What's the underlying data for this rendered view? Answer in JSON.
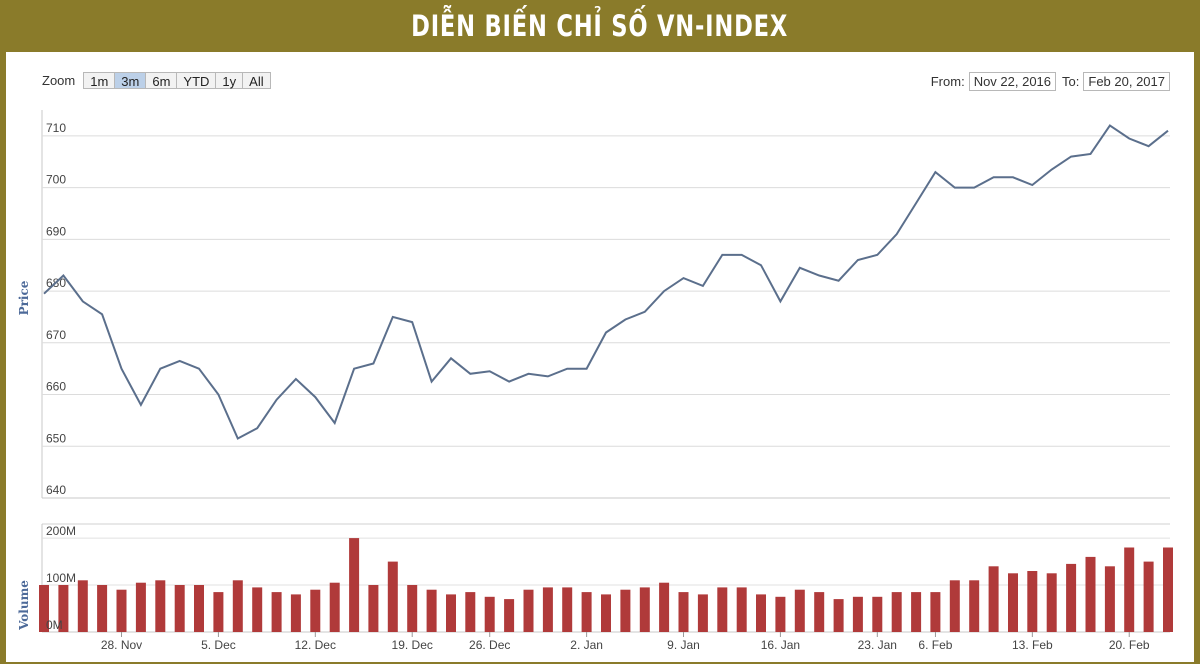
{
  "banner": {
    "title": "DIỄN BIẾN CHỈ SỐ VN-INDEX"
  },
  "zoom": {
    "label": "Zoom",
    "buttons": [
      {
        "label": "1m",
        "active": false
      },
      {
        "label": "3m",
        "active": true
      },
      {
        "label": "6m",
        "active": false
      },
      {
        "label": "YTD",
        "active": false
      },
      {
        "label": "1y",
        "active": false
      },
      {
        "label": "All",
        "active": false
      }
    ]
  },
  "range": {
    "from_label": "From:",
    "from_value": "Nov 22, 2016",
    "to_label": "To:",
    "to_value": "Feb 20, 2017"
  },
  "colors": {
    "line": "#5b6f8c",
    "bar": "#b03a3a",
    "banner": "#8a7b2a",
    "axis_title": "#4d6a99"
  },
  "chart_data": [
    {
      "type": "line",
      "ylabel": "Price",
      "ylim": [
        640,
        715
      ],
      "yticks": [
        640,
        650,
        660,
        670,
        680,
        690,
        700,
        710
      ],
      "grid": true,
      "values": [
        679.5,
        683,
        678,
        675.5,
        665,
        658,
        665,
        666.5,
        665,
        660,
        651.5,
        653.5,
        659,
        663,
        659.5,
        654.5,
        665,
        666,
        675,
        674,
        662.5,
        667,
        664,
        664.5,
        662.5,
        664,
        663.5,
        665,
        665,
        672,
        674.5,
        676,
        680,
        682.5,
        681,
        687,
        687,
        685,
        678,
        684.5,
        683,
        682,
        686,
        687,
        691,
        697,
        703,
        700,
        700,
        702,
        702,
        700.5,
        703.5,
        706,
        706.5,
        712,
        709.5,
        708,
        711
      ]
    },
    {
      "type": "bar",
      "ylabel": "Volume",
      "ytick_labels": [
        "200M",
        "100M",
        "0M"
      ],
      "yticks": [
        200,
        100,
        0
      ],
      "ylim": [
        0,
        230
      ],
      "x_tick_labels": [
        "28. Nov",
        "5. Dec",
        "12. Dec",
        "19. Dec",
        "26. Dec",
        "2. Jan",
        "9. Jan",
        "16. Jan",
        "23. Jan",
        "6. Feb",
        "13. Feb",
        "20. Feb"
      ],
      "values": [
        100,
        100,
        110,
        100,
        90,
        105,
        110,
        100,
        100,
        85,
        110,
        95,
        85,
        80,
        90,
        105,
        200,
        100,
        150,
        100,
        90,
        80,
        85,
        75,
        70,
        90,
        95,
        95,
        85,
        80,
        90,
        95,
        105,
        85,
        80,
        95,
        95,
        80,
        75,
        90,
        85,
        70,
        75,
        75,
        85,
        85,
        85,
        110,
        110,
        140,
        125,
        130,
        125,
        145,
        160,
        140,
        180,
        150,
        180
      ]
    }
  ]
}
